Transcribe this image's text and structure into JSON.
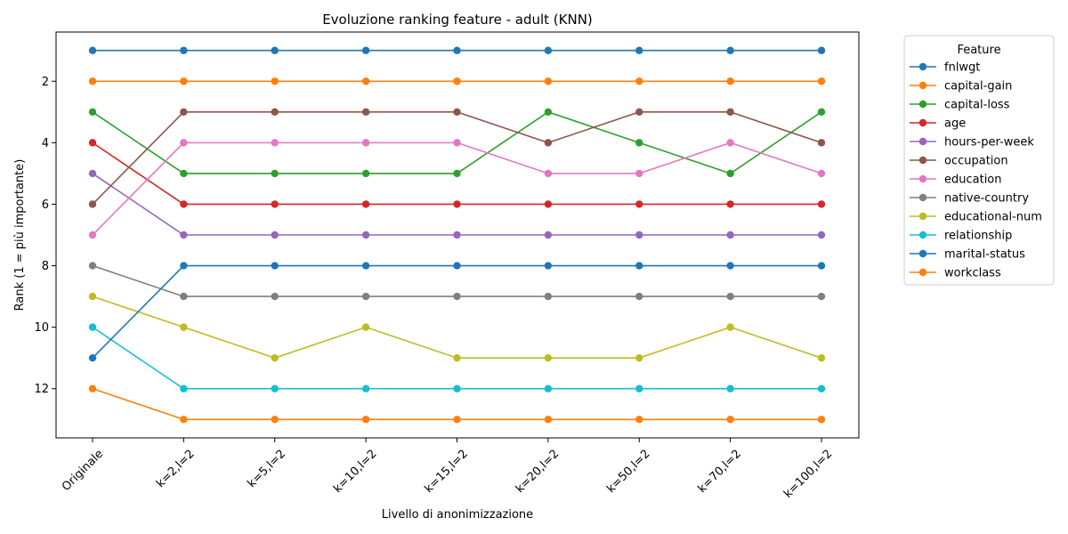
{
  "chart_data": {
    "type": "line",
    "title": "Evoluzione ranking feature - adult (KNN)",
    "xlabel": "Livello di anonimizzazione",
    "ylabel": "Rank (1 = più importante)",
    "categories": [
      "Originale",
      "k=2,l=2",
      "k=5,l=2",
      "k=10,l=2",
      "k=15,l=2",
      "k=20,l=2",
      "k=50,l=2",
      "k=70,l=2",
      "k=100,l=2"
    ],
    "y_ticks": [
      2,
      4,
      6,
      8,
      10,
      12
    ],
    "ylim": [
      13.6,
      0.4
    ],
    "y_inverted": true,
    "grid": false,
    "legend_title": "Feature",
    "legend_position": "outside-right",
    "series": [
      {
        "name": "fnlwgt",
        "color": "#1f77b4",
        "values": [
          1,
          1,
          1,
          1,
          1,
          1,
          1,
          1,
          1
        ]
      },
      {
        "name": "capital-gain",
        "color": "#ff7f0e",
        "values": [
          2,
          2,
          2,
          2,
          2,
          2,
          2,
          2,
          2
        ]
      },
      {
        "name": "capital-loss",
        "color": "#2ca02c",
        "values": [
          3,
          5,
          5,
          5,
          5,
          3,
          4,
          5,
          3
        ]
      },
      {
        "name": "age",
        "color": "#d62728",
        "values": [
          4,
          6,
          6,
          6,
          6,
          6,
          6,
          6,
          6
        ]
      },
      {
        "name": "hours-per-week",
        "color": "#9467bd",
        "values": [
          5,
          7,
          7,
          7,
          7,
          7,
          7,
          7,
          7
        ]
      },
      {
        "name": "occupation",
        "color": "#8c564b",
        "values": [
          6,
          3,
          3,
          3,
          3,
          4,
          3,
          3,
          4
        ]
      },
      {
        "name": "education",
        "color": "#e377c2",
        "values": [
          7,
          4,
          4,
          4,
          4,
          5,
          5,
          4,
          5
        ]
      },
      {
        "name": "native-country",
        "color": "#7f7f7f",
        "values": [
          8,
          9,
          9,
          9,
          9,
          9,
          9,
          9,
          9
        ]
      },
      {
        "name": "educational-num",
        "color": "#bcbd22",
        "values": [
          9,
          10,
          11,
          10,
          11,
          11,
          11,
          10,
          11
        ]
      },
      {
        "name": "relationship",
        "color": "#17becf",
        "values": [
          10,
          12,
          12,
          12,
          12,
          12,
          12,
          12,
          12
        ]
      },
      {
        "name": "marital-status",
        "color": "#1f77b4",
        "values": [
          11,
          8,
          8,
          8,
          8,
          8,
          8,
          8,
          8
        ]
      },
      {
        "name": "workclass",
        "color": "#ff7f0e",
        "values": [
          12,
          13,
          13,
          13,
          13,
          13,
          13,
          13,
          13
        ]
      }
    ]
  }
}
